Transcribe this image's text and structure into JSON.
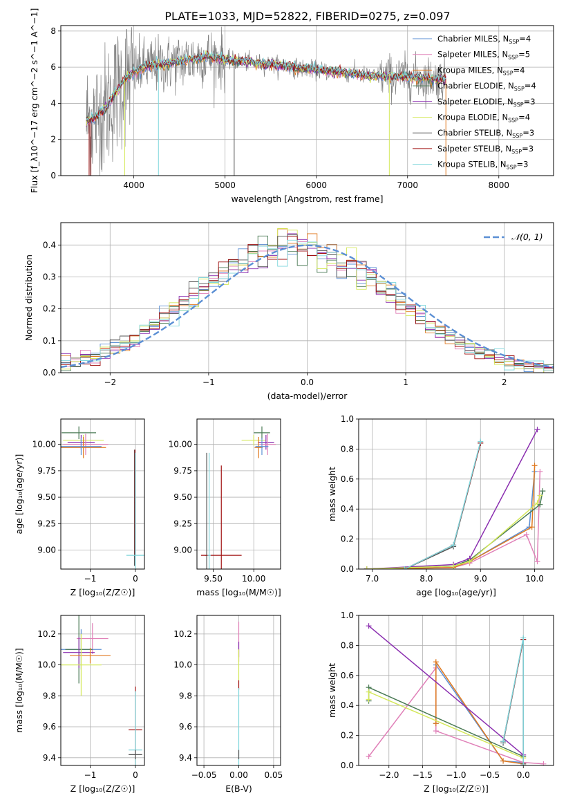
{
  "title": "PLATE=1033, MJD=52822, FIBERID=0275, z=0.097",
  "colors": {
    "chabrier_miles": "#5b8fd4",
    "salpeter_miles": "#e080b8",
    "kroupa_miles": "#e07a20",
    "chabrier_elodie": "#4a7a55",
    "salpeter_elodie": "#8b2fb0",
    "kroupa_elodie": "#d4e85a",
    "chabrier_stelib": "#555555",
    "salpeter_stelib": "#a01010",
    "kroupa_stelib": "#7fd6dc",
    "data": "#808080",
    "normal": "#5b8fd4"
  },
  "chart_data": [
    {
      "id": "spectrum",
      "type": "line",
      "xlabel": "wavelength [Angstrom, rest frame]",
      "ylabel": "Flux [f_λ10^−17 erg cm^−2 s^−1 A^−1]",
      "xlim": [
        3200,
        8600
      ],
      "ylim": [
        0,
        8.3
      ],
      "xticks": [
        4000,
        5000,
        6000,
        7000,
        8000
      ],
      "yticks": [
        0,
        2,
        4,
        6,
        8
      ],
      "legend_position": "right",
      "legend": [
        {
          "key": "chabrier_miles",
          "label": "Chabrier MILES, N",
          "sub": "SSP",
          "suffix": "=4"
        },
        {
          "key": "salpeter_miles",
          "label": "Salpeter MILES, N",
          "sub": "SSP",
          "suffix": "=5"
        },
        {
          "key": "kroupa_miles",
          "label": "Kroupa MILES, N",
          "sub": "SSP",
          "suffix": "=4"
        },
        {
          "key": "chabrier_elodie",
          "label": "Chabrier ELODIE, N",
          "sub": "SSP",
          "suffix": "=4"
        },
        {
          "key": "salpeter_elodie",
          "label": "Salpeter ELODIE, N",
          "sub": "SSP",
          "suffix": "=3"
        },
        {
          "key": "kroupa_elodie",
          "label": "Kroupa ELODIE, N",
          "sub": "SSP",
          "suffix": "=4"
        },
        {
          "key": "chabrier_stelib",
          "label": "Chabrier STELIB, N",
          "sub": "SSP",
          "suffix": "=3"
        },
        {
          "key": "salpeter_stelib",
          "label": "Salpeter STELIB, N",
          "sub": "SSP",
          "suffix": "=3"
        },
        {
          "key": "kroupa_stelib",
          "label": "Kroupa STELIB, N",
          "sub": "SSP",
          "suffix": "=3"
        }
      ],
      "model_curve": {
        "x": [
          3480,
          3600,
          3700,
          3800,
          3900,
          4000,
          4100,
          4200,
          4300,
          4400,
          4500,
          4600,
          4700,
          4800,
          4900,
          5000,
          5200,
          5400,
          5600,
          5800,
          6000,
          6200,
          6400,
          6600,
          6800,
          7000,
          7200,
          7400
        ],
        "y": [
          3.0,
          3.3,
          3.8,
          4.6,
          5.3,
          5.7,
          6.0,
          6.1,
          6.1,
          6.2,
          6.3,
          6.4,
          6.5,
          6.6,
          6.5,
          6.4,
          6.3,
          6.2,
          6.1,
          5.95,
          5.85,
          5.75,
          5.65,
          5.5,
          5.5,
          5.45,
          5.4,
          5.3
        ]
      },
      "spikes": [
        {
          "key": "salpeter_stelib",
          "x": 3510
        },
        {
          "key": "salpeter_stelib",
          "x": 3530
        },
        {
          "key": "kroupa_elodie",
          "x": 3900
        },
        {
          "key": "kroupa_stelib",
          "x": 4270
        },
        {
          "key": "chabrier_stelib",
          "x": 5100
        },
        {
          "key": "kroupa_elodie",
          "x": 6800
        },
        {
          "key": "kroupa_miles",
          "x": 7420
        }
      ]
    },
    {
      "id": "residuals",
      "type": "histogram",
      "xlabel": "(data-model)/error",
      "ylabel": "Normed distribution",
      "xlim": [
        -2.5,
        2.5
      ],
      "ylim": [
        0,
        0.47
      ],
      "xticks": [
        -2,
        -1,
        0,
        1,
        2
      ],
      "yticks": [
        0.0,
        0.1,
        0.2,
        0.3,
        0.4
      ],
      "legend_position": "top-right",
      "normal_label": "𝒩(0, 1)",
      "bin_width": 0.1,
      "bin_start": -2.5,
      "series_keys": [
        "chabrier_miles",
        "salpeter_miles",
        "kroupa_miles",
        "chabrier_elodie",
        "salpeter_elodie",
        "kroupa_elodie",
        "chabrier_stelib",
        "salpeter_stelib",
        "kroupa_stelib"
      ]
    },
    {
      "id": "age_vs_z",
      "type": "errorbar",
      "xlabel": "Z [log₁₀(Z/Z☉)]",
      "ylabel": "age  [log₁₀(age/yr)]",
      "xlim": [
        -1.65,
        0.2
      ],
      "ylim": [
        8.82,
        10.24
      ],
      "xticks": [
        -1,
        0
      ],
      "yticks": [
        9.0,
        9.25,
        9.5,
        9.75,
        10.0
      ],
      "points": [
        {
          "key": "chabrier_elodie",
          "x": -1.25,
          "y": 10.11,
          "xerr": 0.38,
          "yerr": 0.06
        },
        {
          "key": "kroupa_elodie",
          "x": -1.15,
          "y": 10.04,
          "xerr": 0.45,
          "yerr": 0.05
        },
        {
          "key": "salpeter_elodie",
          "x": -1.2,
          "y": 10.02,
          "xerr": 0.3,
          "yerr": 0.07
        },
        {
          "key": "salpeter_miles",
          "x": -1.1,
          "y": 10.0,
          "xerr": 0.5,
          "yerr": 0.1
        },
        {
          "key": "kroupa_miles",
          "x": -1.15,
          "y": 9.97,
          "xerr": 0.5,
          "yerr": 0.1
        },
        {
          "key": "chabrier_miles",
          "x": -1.2,
          "y": 9.98,
          "xerr": 0.45,
          "yerr": 0.08
        },
        {
          "key": "chabrier_stelib",
          "x": -0.02,
          "y": 9.4,
          "xerr": 0.01,
          "yerr": 0.55
        },
        {
          "key": "salpeter_stelib",
          "x": -0.01,
          "y": 9.45,
          "xerr": 0.01,
          "yerr": 0.5
        },
        {
          "key": "kroupa_stelib",
          "x": 0.0,
          "y": 8.95,
          "xerr": 0.2,
          "yerr": 0.97
        }
      ]
    },
    {
      "id": "age_vs_mass",
      "type": "errorbar",
      "xlabel": "mass [log₁₀(M/M☉)]",
      "ylabel": "",
      "xlim": [
        9.3,
        10.33
      ],
      "ylim": [
        8.82,
        10.24
      ],
      "xticks": [
        9.5,
        10.0
      ],
      "yticks": [
        9.0,
        9.25,
        9.5,
        9.75,
        10.0
      ],
      "points": [
        {
          "key": "chabrier_elodie",
          "x": 10.1,
          "y": 10.11,
          "xerr": 0.1,
          "yerr": 0.06
        },
        {
          "key": "kroupa_elodie",
          "x": 10.0,
          "y": 10.04,
          "xerr": 0.15,
          "yerr": 0.05
        },
        {
          "key": "salpeter_elodie",
          "x": 10.15,
          "y": 10.02,
          "xerr": 0.1,
          "yerr": 0.07
        },
        {
          "key": "salpeter_miles",
          "x": 10.17,
          "y": 10.0,
          "xerr": 0.1,
          "yerr": 0.1
        },
        {
          "key": "kroupa_miles",
          "x": 10.06,
          "y": 9.97,
          "xerr": 0.05,
          "yerr": 0.1
        },
        {
          "key": "chabrier_miles",
          "x": 10.1,
          "y": 9.98,
          "xerr": 0.08,
          "yerr": 0.08
        },
        {
          "key": "chabrier_stelib",
          "x": 9.42,
          "y": 8.95,
          "xerr": 0.02,
          "yerr": 0.97
        },
        {
          "key": "salpeter_stelib",
          "x": 9.6,
          "y": 8.95,
          "xerr": 0.25,
          "yerr": 0.85
        },
        {
          "key": "kroupa_stelib",
          "x": 9.45,
          "y": 8.95,
          "xerr": 0.02,
          "yerr": 0.97
        }
      ]
    },
    {
      "id": "mass_weight_vs_age",
      "type": "line",
      "xlabel": "age  [log₁₀(age/yr)]",
      "ylabel": "mass weight",
      "xlim": [
        6.75,
        10.35
      ],
      "ylim": [
        0,
        1.0
      ],
      "xticks": [
        7,
        8,
        9,
        10
      ],
      "yticks": [
        0.0,
        0.2,
        0.4,
        0.6,
        0.8,
        1.0
      ],
      "series": [
        {
          "key": "chabrier_miles",
          "x": [
            6.9,
            8.5,
            8.8,
            9.9,
            10.0
          ],
          "y": [
            0.0,
            0.02,
            0.05,
            0.28,
            0.65
          ]
        },
        {
          "key": "salpeter_miles",
          "x": [
            6.9,
            8.5,
            8.8,
            9.85,
            10.05,
            10.1
          ],
          "y": [
            0.0,
            0.01,
            0.04,
            0.23,
            0.05,
            0.65
          ]
        },
        {
          "key": "kroupa_miles",
          "x": [
            6.9,
            8.5,
            8.8,
            9.95,
            10.0
          ],
          "y": [
            0.0,
            0.01,
            0.05,
            0.28,
            0.69
          ]
        },
        {
          "key": "chabrier_elodie",
          "x": [
            6.9,
            8.5,
            8.8,
            10.1,
            10.15
          ],
          "y": [
            0.0,
            0.02,
            0.06,
            0.43,
            0.52
          ]
        },
        {
          "key": "salpeter_elodie",
          "x": [
            6.9,
            8.5,
            8.8,
            10.05
          ],
          "y": [
            0.0,
            0.03,
            0.07,
            0.93
          ]
        },
        {
          "key": "kroupa_elodie",
          "x": [
            6.9,
            8.5,
            8.8,
            10.05,
            10.1
          ],
          "y": [
            0.0,
            0.02,
            0.05,
            0.44,
            0.49
          ]
        },
        {
          "key": "chabrier_stelib",
          "x": [
            7.6,
            8.5,
            9.0
          ],
          "y": [
            0.0,
            0.15,
            0.84
          ]
        },
        {
          "key": "salpeter_stelib",
          "x": [
            7.6,
            8.5,
            9.0
          ],
          "y": [
            0.0,
            0.16,
            0.84
          ]
        },
        {
          "key": "kroupa_stelib",
          "x": [
            7.6,
            8.5,
            9.0
          ],
          "y": [
            0.0,
            0.16,
            0.85
          ]
        }
      ]
    },
    {
      "id": "mass_vs_z",
      "type": "errorbar",
      "xlabel": "Z [log₁₀(Z/Z☉)]",
      "ylabel": "mass [log₁₀(M/M☉)]",
      "xlim": [
        -1.65,
        0.2
      ],
      "ylim": [
        9.35,
        10.32
      ],
      "xticks": [
        -1,
        0
      ],
      "yticks": [
        9.4,
        9.6,
        9.8,
        10.0,
        10.2
      ],
      "points": [
        {
          "key": "salpeter_miles",
          "x": -0.95,
          "y": 10.17,
          "xerr": 0.35,
          "yerr": 0.1
        },
        {
          "key": "chabrier_miles",
          "x": -1.2,
          "y": 10.1,
          "xerr": 0.45,
          "yerr": 0.13
        },
        {
          "key": "chabrier_elodie",
          "x": -1.25,
          "y": 10.1,
          "xerr": 0.3,
          "yerr": 0.22
        },
        {
          "key": "salpeter_elodie",
          "x": -1.25,
          "y": 10.08,
          "xerr": 0.35,
          "yerr": 0.1
        },
        {
          "key": "kroupa_miles",
          "x": -1.0,
          "y": 10.06,
          "xerr": 0.45,
          "yerr": 0.05
        },
        {
          "key": "kroupa_elodie",
          "x": -1.2,
          "y": 10.0,
          "xerr": 0.45,
          "yerr": 0.2
        },
        {
          "key": "salpeter_stelib",
          "x": 0.0,
          "y": 9.58,
          "xerr": 0.15,
          "yerr": 0.28
        },
        {
          "key": "kroupa_stelib",
          "x": 0.0,
          "y": 9.45,
          "xerr": 0.15,
          "yerr": 0.38
        },
        {
          "key": "chabrier_stelib",
          "x": 0.0,
          "y": 9.42,
          "xerr": 0.15,
          "yerr": 0.03
        }
      ]
    },
    {
      "id": "mass_vs_ebv",
      "type": "errorbar",
      "xlabel": "E(B-V)",
      "ylabel": "",
      "xlim": [
        -0.06,
        0.06
      ],
      "ylim": [
        9.35,
        10.32
      ],
      "xticks": [
        -0.05,
        0.0,
        0.05
      ],
      "yticks": [
        9.4,
        9.6,
        9.8,
        10.0,
        10.2
      ],
      "points": [
        {
          "key": "salpeter_miles",
          "x": 0.0,
          "y": 10.15,
          "xerr": 0.0,
          "yerr": 0.13
        },
        {
          "key": "salpeter_elodie",
          "x": 0.0,
          "y": 10.1,
          "xerr": 0.0,
          "yerr": 0.05
        },
        {
          "key": "kroupa_elodie",
          "x": 0.0,
          "y": 10.0,
          "xerr": 0.0,
          "yerr": 0.1
        },
        {
          "key": "salpeter_stelib",
          "x": 0.0,
          "y": 9.87,
          "xerr": 0.0,
          "yerr": 0.03
        },
        {
          "key": "kroupa_stelib",
          "x": 0.0,
          "y": 9.6,
          "xerr": 0.0,
          "yerr": 0.25
        },
        {
          "key": "chabrier_stelib",
          "x": 0.0,
          "y": 9.42,
          "xerr": 0.0,
          "yerr": 0.03
        }
      ]
    },
    {
      "id": "mass_weight_vs_z",
      "type": "line",
      "xlabel": "Z [log₁₀(Z/Z☉)]",
      "ylabel": "mass weight",
      "xlim": [
        -2.45,
        0.45
      ],
      "ylim": [
        0,
        1.0
      ],
      "xticks": [
        -2.0,
        -1.5,
        -1.0,
        -0.5,
        0.0
      ],
      "yticks": [
        0.0,
        0.2,
        0.4,
        0.6,
        0.8,
        1.0
      ],
      "series": [
        {
          "key": "chabrier_miles",
          "x": [
            -1.3,
            -1.3,
            -0.3,
            0.0
          ],
          "y": [
            0.28,
            0.67,
            0.03,
            0.02
          ]
        },
        {
          "key": "salpeter_miles",
          "x": [
            -2.3,
            -1.3,
            -1.3,
            0.0,
            0.3
          ],
          "y": [
            0.06,
            0.65,
            0.23,
            0.02,
            0.01
          ]
        },
        {
          "key": "kroupa_miles",
          "x": [
            -1.3,
            -1.3,
            -0.3,
            0.0
          ],
          "y": [
            0.28,
            0.69,
            0.03,
            0.01
          ]
        },
        {
          "key": "chabrier_elodie",
          "x": [
            -2.3,
            -2.3,
            0.0
          ],
          "y": [
            0.43,
            0.52,
            0.06
          ]
        },
        {
          "key": "salpeter_elodie",
          "x": [
            -2.3,
            0.0
          ],
          "y": [
            0.93,
            0.07
          ]
        },
        {
          "key": "kroupa_elodie",
          "x": [
            -2.3,
            -2.3,
            0.0
          ],
          "y": [
            0.44,
            0.49,
            0.05
          ]
        },
        {
          "key": "chabrier_stelib",
          "x": [
            -0.3,
            0.0,
            0.0
          ],
          "y": [
            0.15,
            0.84,
            0.01
          ]
        },
        {
          "key": "salpeter_stelib",
          "x": [
            -0.3,
            0.0,
            0.0
          ],
          "y": [
            0.16,
            0.84,
            0.0
          ]
        },
        {
          "key": "kroupa_stelib",
          "x": [
            -0.3,
            0.0,
            0.0
          ],
          "y": [
            0.16,
            0.85,
            0.0
          ]
        }
      ]
    }
  ]
}
